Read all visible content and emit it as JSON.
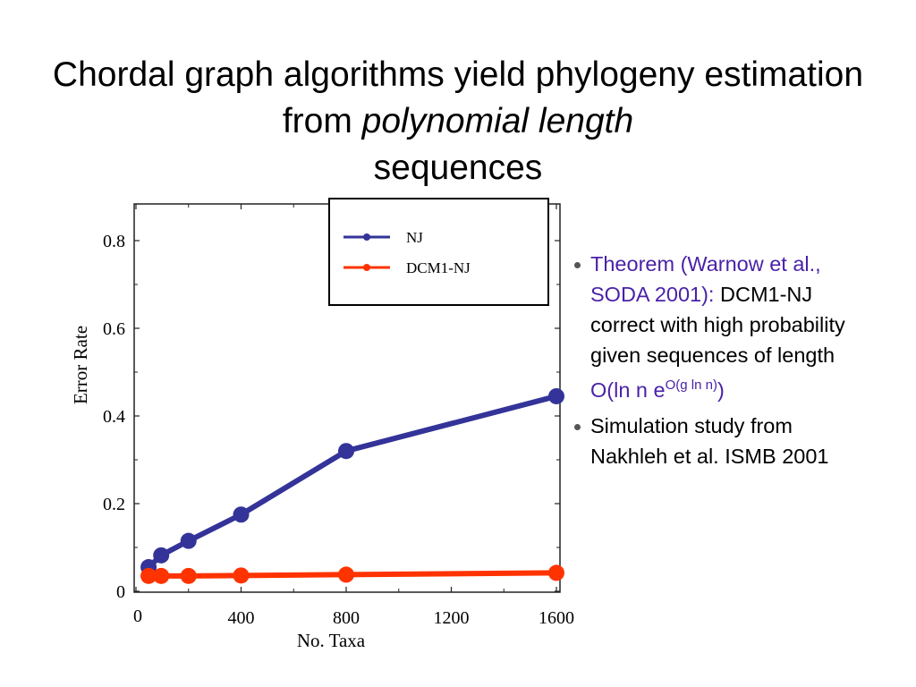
{
  "slide": {
    "title_part1": "Chordal graph algorithms yield phylogeny estimation from ",
    "title_italic": "polynomial length",
    "title_part3": "sequences"
  },
  "bullets": {
    "b1_theorem": "Theorem (Warnow et al., SODA 2001):",
    "b1_text": "DCM1-NJ correct with high probability given sequences of length",
    "b1_formula_base": "O(ln n e",
    "b1_formula_sup": "O(g ln n)",
    "b1_formula_close": ")",
    "b2_text": "Simulation study from Nakhleh et al. ISMB 2001"
  },
  "colors": {
    "nj": "#333399",
    "dcm": "#ff3300",
    "accent": "#4a22a8"
  },
  "chart_data": {
    "type": "line",
    "xlabel": "No. Taxa",
    "ylabel": "Error Rate",
    "xlim": [
      0,
      1600
    ],
    "ylim": [
      0,
      0.8
    ],
    "x_ticks": [
      "0",
      "400",
      "800",
      "1200",
      "1600"
    ],
    "y_ticks": [
      "0",
      "0.2",
      "0.4",
      "0.6",
      "0.8"
    ],
    "legend_placement": "top-right",
    "series": [
      {
        "name": "NJ",
        "x": [
          48,
          96,
          200,
          400,
          800,
          1600
        ],
        "y": [
          0.055,
          0.082,
          0.115,
          0.175,
          0.32,
          0.445
        ]
      },
      {
        "name": "DCM1-NJ",
        "x": [
          48,
          96,
          200,
          400,
          800,
          1600
        ],
        "y": [
          0.035,
          0.035,
          0.035,
          0.036,
          0.038,
          0.042
        ]
      }
    ]
  }
}
